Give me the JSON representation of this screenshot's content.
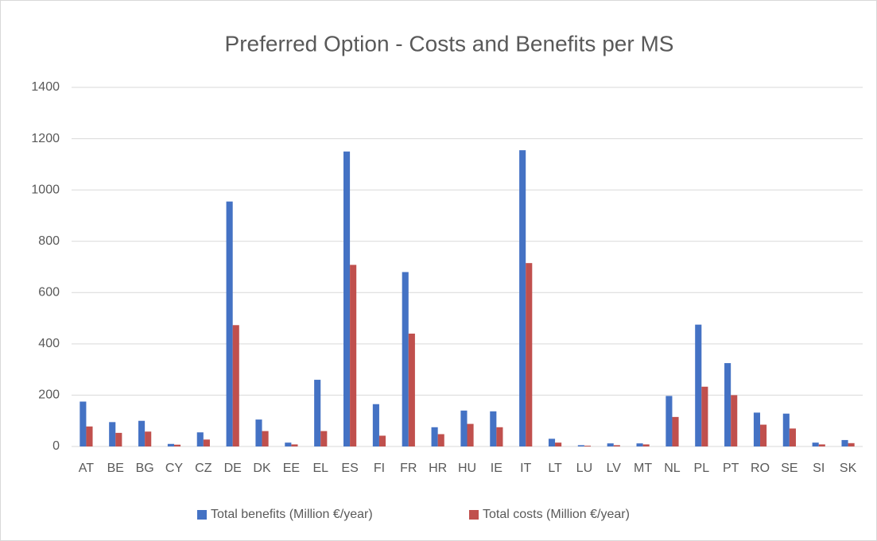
{
  "chart_data": {
    "type": "bar",
    "title": "Preferred Option - Costs and Benefits per MS",
    "categories": [
      "AT",
      "BE",
      "BG",
      "CY",
      "CZ",
      "DE",
      "DK",
      "EE",
      "EL",
      "ES",
      "FI",
      "FR",
      "HR",
      "HU",
      "IE",
      "IT",
      "LT",
      "LU",
      "LV",
      "MT",
      "NL",
      "PL",
      "PT",
      "RO",
      "SE",
      "SI",
      "SK"
    ],
    "series": [
      {
        "name": "Total benefits (Million €/year)",
        "color": "#4472c4",
        "values": [
          175,
          95,
          100,
          10,
          55,
          955,
          105,
          15,
          260,
          1150,
          165,
          680,
          75,
          140,
          137,
          1155,
          30,
          5,
          12,
          12,
          197,
          475,
          325,
          132,
          128,
          15,
          25
        ]
      },
      {
        "name": "Total costs (Million €/year)",
        "color": "#c0504d",
        "values": [
          78,
          53,
          58,
          7,
          27,
          473,
          60,
          8,
          60,
          708,
          42,
          440,
          48,
          88,
          75,
          715,
          15,
          3,
          5,
          8,
          115,
          233,
          200,
          85,
          70,
          8,
          13
        ]
      }
    ],
    "ylim": [
      0,
      1400
    ],
    "yticks": [
      0,
      200,
      400,
      600,
      800,
      1000,
      1200,
      1400
    ],
    "grid": true,
    "legend": "bottom"
  }
}
